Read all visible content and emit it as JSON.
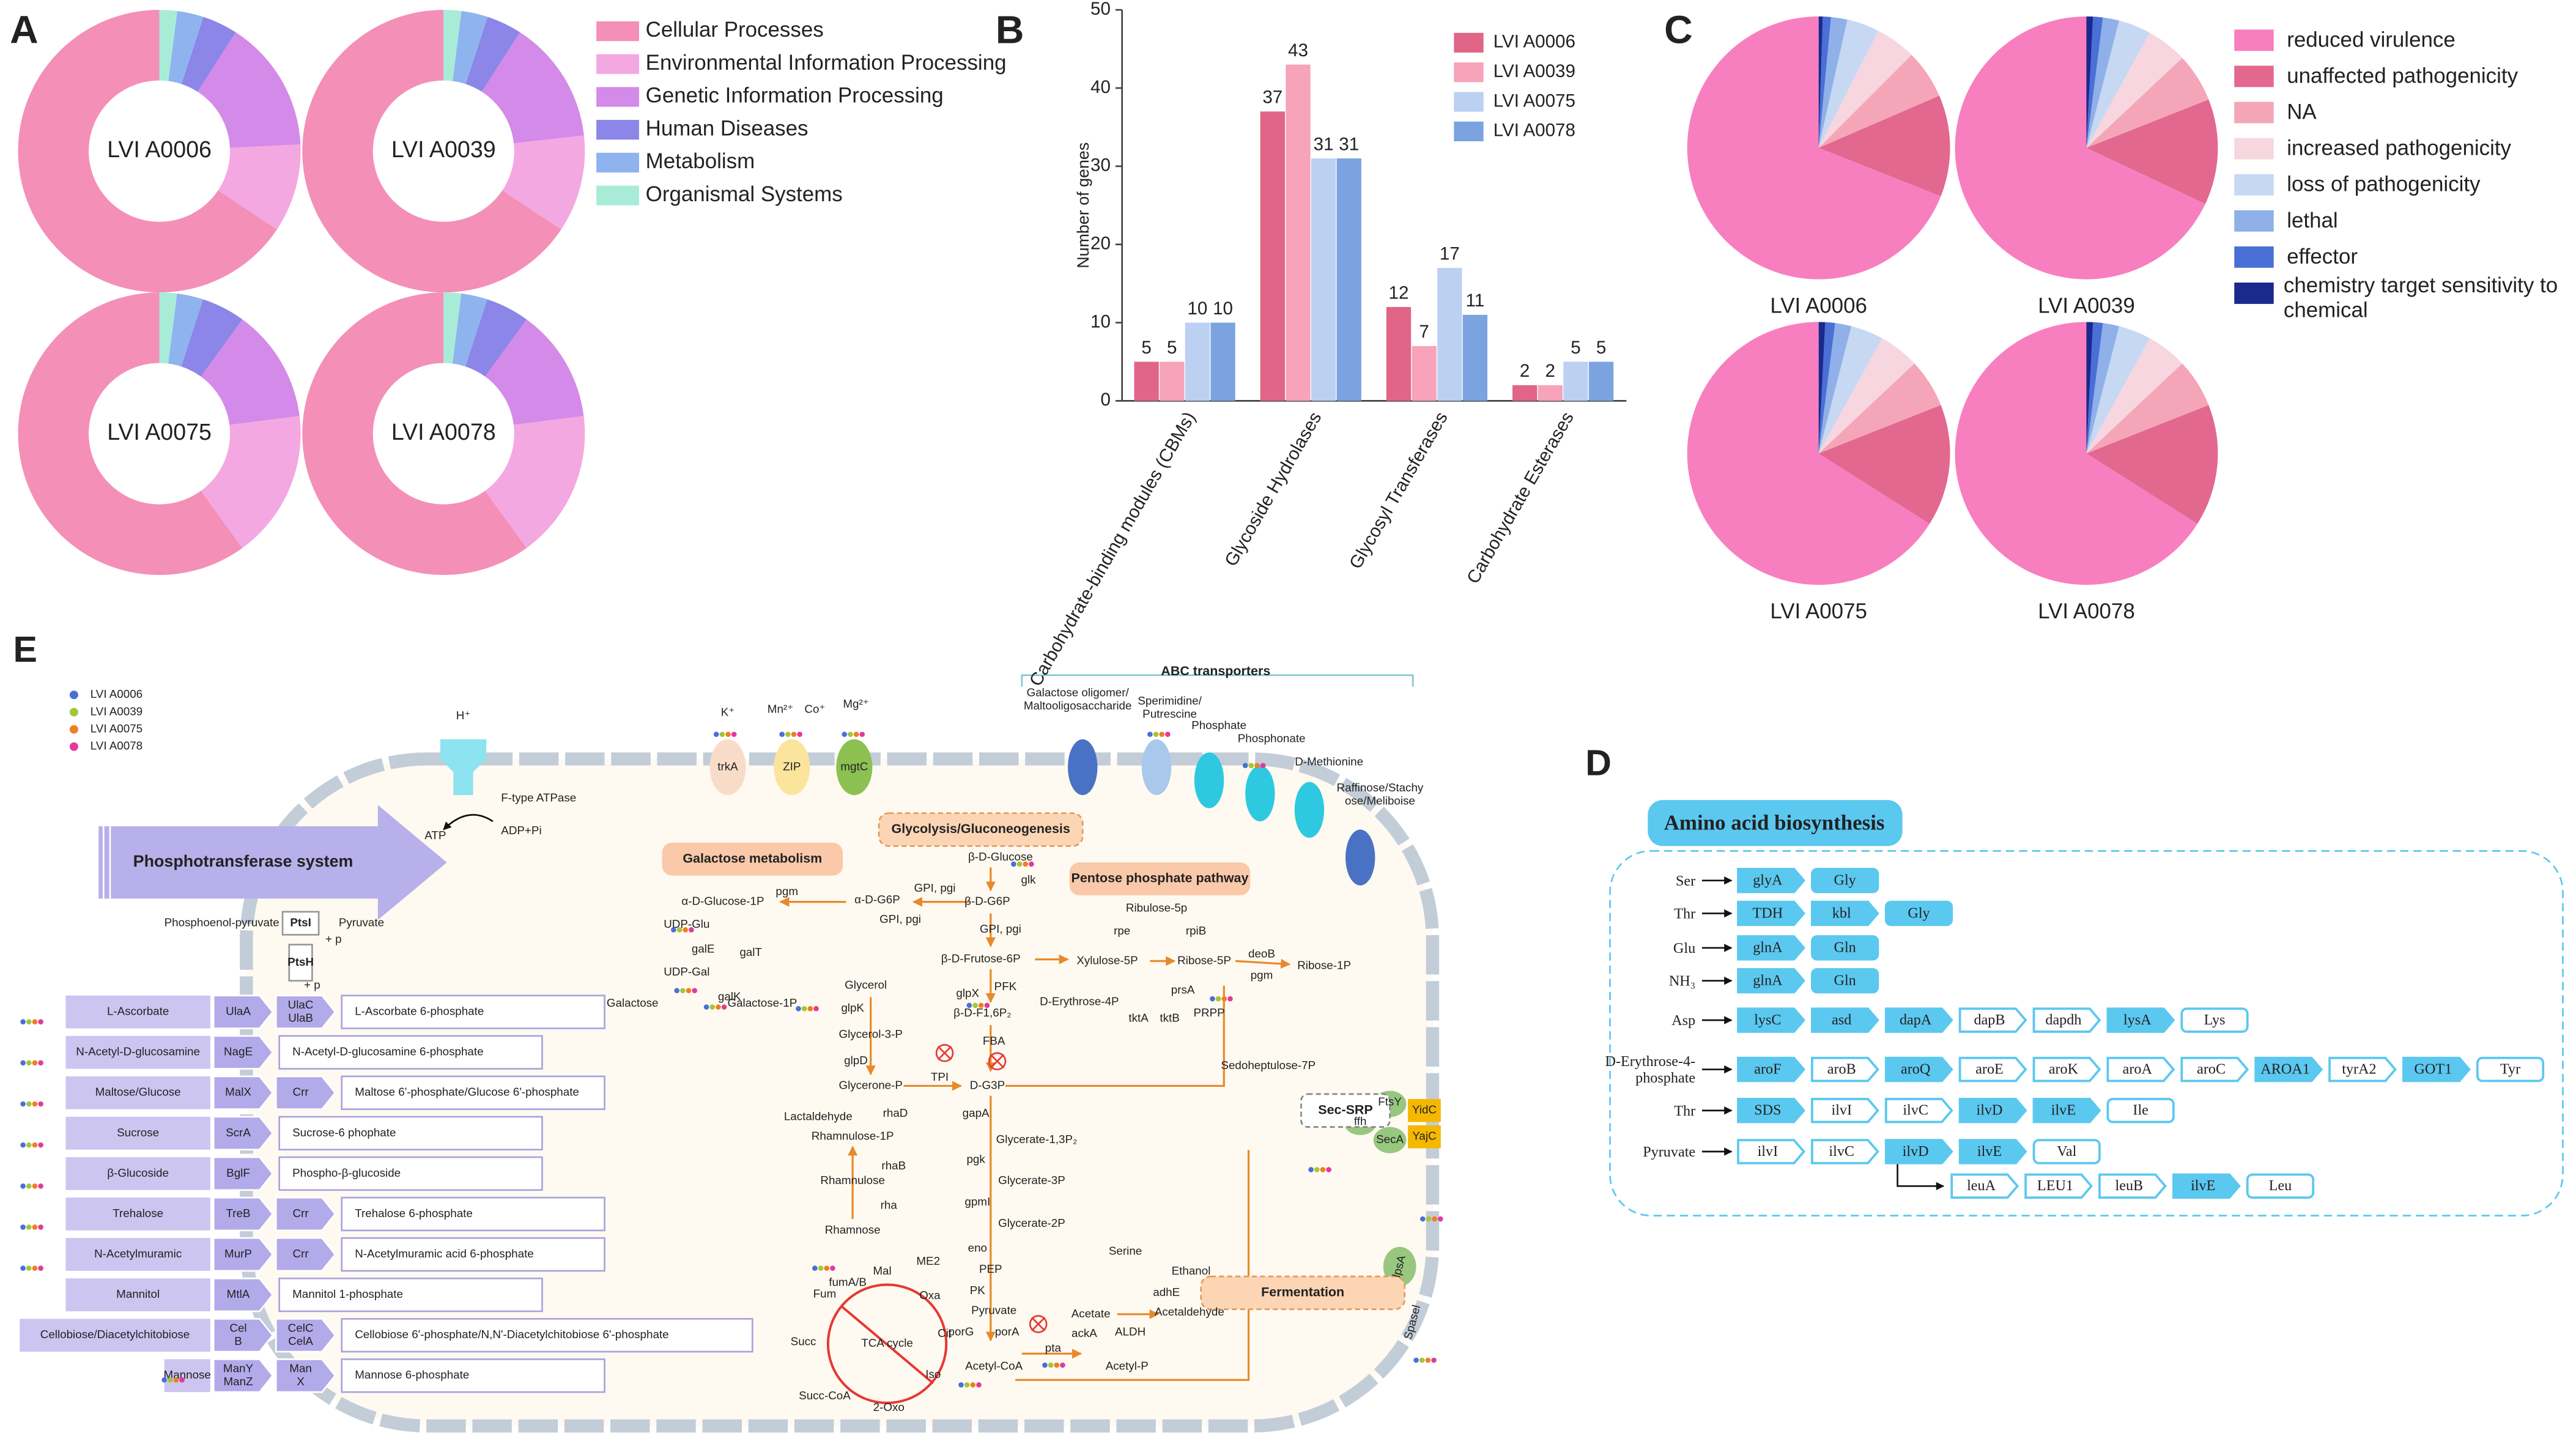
{
  "chart_data": [
    {
      "type": "donut",
      "label": "A",
      "categories": [
        "Cellular Processes",
        "Environmental Information Processing",
        "Genetic Information Processing",
        "Human Diseases",
        "Metabolism",
        "Organismal Systems"
      ],
      "colors": [
        "#f48fb8",
        "#f4a8e2",
        "#d48ae8",
        "#8b86e8",
        "#8fb3ef",
        "#a8ecd8"
      ],
      "series": [
        {
          "name": "LVI A0006",
          "values": [
            65,
            10,
            15,
            4,
            3,
            2
          ]
        },
        {
          "name": "LVI A0039",
          "values": [
            65,
            11,
            14,
            4,
            3,
            2
          ]
        },
        {
          "name": "LVI A0075",
          "values": [
            60,
            17,
            13,
            5,
            3,
            2
          ]
        },
        {
          "name": "LVI A0078",
          "values": [
            60,
            17,
            13,
            5,
            3,
            2
          ]
        }
      ]
    },
    {
      "type": "bar",
      "label": "B",
      "ylabel": "Number of genes",
      "categories": [
        "Carbohydrate-binding modules (CBMs)",
        "Glycoside Hydrolases",
        "Glycosyl Transferases",
        "Carbohydrate Esterases"
      ],
      "series": [
        {
          "name": "LVI A0006",
          "color": "#e06587",
          "values": [
            5,
            37,
            12,
            2
          ]
        },
        {
          "name": "LVI A0039",
          "color": "#f7a3ba",
          "values": [
            5,
            43,
            7,
            2
          ]
        },
        {
          "name": "LVI A0075",
          "color": "#bcd0f2",
          "values": [
            10,
            31,
            17,
            5
          ]
        },
        {
          "name": "LVI A0078",
          "color": "#7aa3e0",
          "values": [
            10,
            31,
            11,
            5
          ]
        }
      ],
      "ylim": [
        0,
        50
      ],
      "yticks": [
        0,
        10,
        20,
        30,
        40,
        50
      ]
    },
    {
      "type": "pie",
      "label": "C",
      "categories": [
        "reduced virulence",
        "unaffected pathogenicity",
        "NA",
        "increased pathogenicity",
        "loss of pathogenicity",
        "lethal",
        "effector",
        "chemistry target sensitivity to chemical"
      ],
      "colors": [
        "#f77fbf",
        "#e2688f",
        "#f4a6b8",
        "#f7d6e0",
        "#c6d8f2",
        "#8fb0e8",
        "#4a6fd6",
        "#1a2a8c"
      ],
      "series": [
        {
          "name": "LVI A0006",
          "values": [
            69,
            12.5,
            6,
            5,
            4,
            2,
            1,
            0.5
          ]
        },
        {
          "name": "LVI A0039",
          "values": [
            68,
            13,
            6,
            5,
            4,
            2,
            1.2,
            0.8
          ]
        },
        {
          "name": "LVI A0075",
          "values": [
            66,
            15,
            6,
            5,
            4,
            2,
            1.2,
            0.8
          ]
        },
        {
          "name": "LVI A0078",
          "values": [
            66,
            15,
            6,
            5,
            4,
            2,
            1.2,
            0.8
          ]
        }
      ]
    }
  ],
  "panel_d": {
    "label": "D",
    "title": "Amino acid biosynthesis",
    "rows": [
      {
        "input": "Ser",
        "steps": [
          {
            "label": "glyA",
            "filled": true
          },
          {
            "label": "Gly",
            "filled": true
          }
        ]
      },
      {
        "input": "Thr",
        "steps": [
          {
            "label": "TDH",
            "filled": true
          },
          {
            "label": "kbl",
            "filled": true
          },
          {
            "label": "Gly",
            "filled": true
          }
        ]
      },
      {
        "input": "Glu",
        "steps": [
          {
            "label": "glnA",
            "filled": true
          },
          {
            "label": "Gln",
            "filled": true
          }
        ]
      },
      {
        "input": "NH₃",
        "steps": [
          {
            "label": "glnA",
            "filled": true
          },
          {
            "label": "Gln",
            "filled": true
          }
        ]
      },
      {
        "input": "Asp",
        "steps": [
          {
            "label": "lysC",
            "filled": true
          },
          {
            "label": "asd",
            "filled": true
          },
          {
            "label": "dapA",
            "filled": true
          },
          {
            "label": "dapB",
            "filled": false
          },
          {
            "label": "dapdh",
            "filled": false
          },
          {
            "label": "lysA",
            "filled": true
          },
          {
            "label": "Lys",
            "filled": false
          }
        ]
      },
      {
        "input": "D-Erythrose-4-phosphate",
        "steps": [
          {
            "label": "aroF",
            "filled": true
          },
          {
            "label": "aroB",
            "filled": false
          },
          {
            "label": "aroQ",
            "filled": true
          },
          {
            "label": "aroE",
            "filled": false
          },
          {
            "label": "aroK",
            "filled": false
          },
          {
            "label": "aroA",
            "filled": false
          },
          {
            "label": "aroC",
            "filled": false
          },
          {
            "label": "AROA1",
            "filled": true
          },
          {
            "label": "tyrA2",
            "filled": false
          },
          {
            "label": "GOT1",
            "filled": true
          },
          {
            "label": "Tyr",
            "filled": false
          }
        ]
      },
      {
        "input": "Thr",
        "steps": [
          {
            "label": "SDS",
            "filled": true
          },
          {
            "label": "ilvI",
            "filled": false
          },
          {
            "label": "ilvC",
            "filled": false
          },
          {
            "label": "ilvD",
            "filled": true
          },
          {
            "label": "ilvE",
            "filled": true
          },
          {
            "label": "Ile",
            "filled": false
          }
        ]
      },
      {
        "input": "Pyruvate",
        "steps": [
          {
            "label": "ilvI",
            "filled": false
          },
          {
            "label": "ilvC",
            "filled": false
          },
          {
            "label": "ilvD",
            "filled": true
          },
          {
            "label": "ilvE",
            "filled": true
          },
          {
            "label": "Val",
            "filled": false
          }
        ]
      }
    ],
    "branch_steps": [
      {
        "label": "leuA",
        "filled": false
      },
      {
        "label": "LEU1",
        "filled": false
      },
      {
        "label": "leuB",
        "filled": false
      },
      {
        "label": "ilvE",
        "filled": true
      },
      {
        "label": "Leu",
        "filled": false
      }
    ]
  },
  "panel_e": {
    "label": "E",
    "legend": [
      {
        "name": "LVI A0006",
        "color": "#4a6fd6"
      },
      {
        "name": "LVI A0039",
        "color": "#a4c639"
      },
      {
        "name": "LVI A0075",
        "color": "#f07f22"
      },
      {
        "name": "LVI A0078",
        "color": "#e5399b"
      }
    ],
    "titles": [
      "ABC transporters",
      "Phosphotransferase system",
      "Galactose metabolism",
      "Glycolysis/Gluconeogenesis",
      "Pentose phosphate pathway",
      "Fermentation",
      "Sec-SRP"
    ],
    "pts": [
      {
        "substrate": "L-Ascorbate",
        "enzymes": [
          [
            "UlaA"
          ],
          [
            "UlaC",
            "UlaB"
          ]
        ],
        "product": "L-Ascorbate 6-phosphate"
      },
      {
        "substrate": "N-Acetyl-D-glucosamine",
        "enzymes": [
          [
            "NagE"
          ]
        ],
        "product": "N-Acetyl-D-glucosamine 6-phosphate"
      },
      {
        "substrate": "Maltose/Glucose",
        "enzymes": [
          [
            "MalX"
          ],
          [
            "Crr"
          ]
        ],
        "product": "Maltose 6'-phosphate/Glucose 6'-phosphate"
      },
      {
        "substrate": "Sucrose",
        "enzymes": [
          [
            "ScrA"
          ]
        ],
        "product": "Sucrose-6 phophate"
      },
      {
        "substrate": "β-Glucoside",
        "enzymes": [
          [
            "BglF"
          ]
        ],
        "product": "Phospho-β-glucoside"
      },
      {
        "substrate": "Trehalose",
        "enzymes": [
          [
            "TreB"
          ],
          [
            "Crr"
          ]
        ],
        "product": "Trehalose 6-phosphate"
      },
      {
        "substrate": "N-Acetylmuramic",
        "enzymes": [
          [
            "MurP"
          ],
          [
            "Crr"
          ]
        ],
        "product": "N-Acetylmuramic acid 6-phosphate"
      },
      {
        "substrate": "Mannitol",
        "enzymes": [
          [
            "MtlA"
          ]
        ],
        "product": "Mannitol 1-phosphate"
      },
      {
        "substrate": "Cellobiose/Diacetylchitobiose",
        "enzymes": [
          [
            "Cel",
            "B"
          ],
          [
            "CelC",
            "CelA"
          ]
        ],
        "product": "Cellobiose 6'-phosphate/N,N'-Diacetylchitobiose 6'-phosphate"
      },
      {
        "substrate": "Mannose",
        "enzymes": [
          [
            "ManY",
            "ManZ"
          ],
          [
            "Man",
            "X"
          ]
        ],
        "product": "Mannose 6-phosphate"
      }
    ],
    "labels": [
      "H⁺",
      "F-type ATPase",
      "ATP",
      "ADP+Pi",
      "Phosphoenol-pyruvate",
      "Pyruvate",
      "+ p",
      "+ p",
      "K⁺",
      "Mn²⁺",
      "Co⁺",
      "Mg²⁺",
      "Sperimidine/",
      "Putrescine",
      "Phosphate",
      "Phosphonate",
      "D-Methionine",
      "β-D-Glucose",
      "glk",
      "β-D-G6P",
      "GPI, pgi",
      "α-D-G6P",
      "pgm",
      "α-D-Glucose-1P",
      "UDP-Glu",
      "galE",
      "UDP-Gal",
      "galT",
      "galK",
      "Galactose",
      "Galactose-1P",
      "GPI, pgi",
      "GPI, pgi",
      "β-D-Frutose-6P",
      "PFK",
      "glpX",
      "β-D-F1,6P₂",
      "FBA",
      "D-G3P",
      "TPI",
      "Glycerol",
      "glpK",
      "Glycerol-3-P",
      "glpD",
      "Glycerone-P",
      "rhaD",
      "Lactaldehyde",
      "Rhamnulose-1P",
      "rhaB",
      "Rhamnulose",
      "rha",
      "Rhamnose",
      "gapA",
      "Glycerate-1,3P₂",
      "pgk",
      "Glycerate-3P",
      "gpmI",
      "Glycerate-2P",
      "eno",
      "PEP",
      "PK",
      "Pyruvate",
      "Serine",
      "porG",
      "porA",
      "Acetyl-CoA",
      "ME2",
      "Mal",
      "fumA/B",
      "Fum",
      "Oxa",
      "Succ",
      "TCA cycle",
      "Cit",
      "Iso",
      "Succ-CoA",
      "2-Oxo",
      "Acetate",
      "ackA",
      "pta",
      "Acetyl-P",
      "ALDH",
      "Acetaldehyde",
      "adhE",
      "Ethanol",
      "Ribulose-5p",
      "rpe",
      "rpiB",
      "Xylulose-5P",
      "Ribose-5P",
      "deoB",
      "pgm",
      "Ribose-1P",
      "D-Erythrose-4P",
      "prsA",
      "PRPP",
      "tktA",
      "tktB",
      "Sedoheptulose-7P",
      "ffh",
      "lpsA",
      "Spasel",
      "Galactose oligomer/",
      "Maltooligosaccharide",
      "Raffinose/Stachy",
      "ose/Meliboise",
      "trkA",
      "ZIP",
      "mgtC",
      "FtsY",
      "SecA",
      "YidC",
      "YajC",
      "PtsI",
      "PtsH"
    ]
  }
}
